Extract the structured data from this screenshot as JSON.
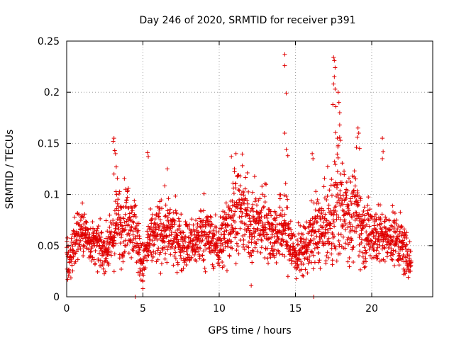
{
  "chart_data": {
    "type": "scatter",
    "title": "Day 246 of 2020, SRMTID for receiver p391",
    "xlabel": "GPS time / hours",
    "ylabel": "SRMTID / TECUs",
    "xlim": [
      0,
      24
    ],
    "ylim": [
      0,
      0.25
    ],
    "x_ticks": [
      0,
      5,
      10,
      15,
      20
    ],
    "x_tick_labels": [
      "0",
      "5",
      "10",
      "15",
      "20"
    ],
    "y_ticks": [
      0,
      0.05,
      0.1,
      0.15,
      0.2,
      0.25
    ],
    "y_tick_labels": [
      "0",
      "0.05",
      "0.1",
      "0.15",
      "0.2",
      "0.25"
    ],
    "grid": true,
    "marker": "plus",
    "series": [
      {
        "name": "SRMTID",
        "color": "#e00000",
        "trend": {
          "x": [
            0,
            0.15,
            0.3,
            0.6,
            1.0,
            1.5,
            2.0,
            2.5,
            3.0,
            3.3,
            3.6,
            4.0,
            4.3,
            4.6,
            4.8,
            5.0,
            5.3,
            5.8,
            6.3,
            7.0,
            7.5,
            8.0,
            8.5,
            9.0,
            9.5,
            10.0,
            10.5,
            11.0,
            11.5,
            12.0,
            12.5,
            13.0,
            13.5,
            14.0,
            14.3,
            14.6,
            15.0,
            15.4,
            15.8,
            16.3,
            16.8,
            17.2,
            17.5,
            17.7,
            18.0,
            18.3,
            18.6,
            19.0,
            19.5,
            20.0,
            20.5,
            21.0,
            21.5,
            22.0,
            22.3,
            22.6
          ],
          "y": [
            0.045,
            0.03,
            0.04,
            0.06,
            0.065,
            0.055,
            0.05,
            0.045,
            0.055,
            0.075,
            0.07,
            0.08,
            0.075,
            0.06,
            0.04,
            0.03,
            0.05,
            0.06,
            0.065,
            0.06,
            0.055,
            0.05,
            0.055,
            0.065,
            0.055,
            0.05,
            0.065,
            0.085,
            0.085,
            0.07,
            0.07,
            0.075,
            0.06,
            0.065,
            0.07,
            0.055,
            0.04,
            0.045,
            0.05,
            0.065,
            0.065,
            0.07,
            0.075,
            0.1,
            0.085,
            0.095,
            0.075,
            0.085,
            0.06,
            0.065,
            0.06,
            0.055,
            0.06,
            0.05,
            0.04,
            0.035
          ],
          "spread": [
            0.012,
            0.01,
            0.015,
            0.015,
            0.015,
            0.012,
            0.012,
            0.012,
            0.015,
            0.025,
            0.022,
            0.02,
            0.02,
            0.02,
            0.015,
            0.012,
            0.015,
            0.018,
            0.02,
            0.018,
            0.016,
            0.015,
            0.015,
            0.02,
            0.015,
            0.015,
            0.022,
            0.025,
            0.025,
            0.022,
            0.02,
            0.022,
            0.018,
            0.02,
            0.025,
            0.02,
            0.015,
            0.015,
            0.015,
            0.022,
            0.022,
            0.025,
            0.03,
            0.045,
            0.035,
            0.03,
            0.025,
            0.025,
            0.018,
            0.02,
            0.018,
            0.015,
            0.016,
            0.015,
            0.012,
            0.01
          ],
          "count": 2200
        },
        "notable_points": [
          {
            "x": 3.1,
            "y": 0.155
          },
          {
            "x": 3.05,
            "y": 0.152
          },
          {
            "x": 3.15,
            "y": 0.143
          },
          {
            "x": 3.2,
            "y": 0.14
          },
          {
            "x": 3.25,
            "y": 0.127
          },
          {
            "x": 3.1,
            "y": 0.12
          },
          {
            "x": 5.3,
            "y": 0.141
          },
          {
            "x": 5.35,
            "y": 0.137
          },
          {
            "x": 6.6,
            "y": 0.125
          },
          {
            "x": 4.5,
            "y": 0.0
          },
          {
            "x": 5.0,
            "y": 0.008
          },
          {
            "x": 10.8,
            "y": 0.137
          },
          {
            "x": 11.1,
            "y": 0.14
          },
          {
            "x": 11.0,
            "y": 0.125
          },
          {
            "x": 12.1,
            "y": 0.011
          },
          {
            "x": 14.3,
            "y": 0.237
          },
          {
            "x": 14.3,
            "y": 0.226
          },
          {
            "x": 14.4,
            "y": 0.199
          },
          {
            "x": 14.3,
            "y": 0.16
          },
          {
            "x": 14.4,
            "y": 0.144
          },
          {
            "x": 14.5,
            "y": 0.138
          },
          {
            "x": 16.1,
            "y": 0.14
          },
          {
            "x": 16.15,
            "y": 0.135
          },
          {
            "x": 16.2,
            "y": 0.0
          },
          {
            "x": 17.5,
            "y": 0.234
          },
          {
            "x": 17.55,
            "y": 0.231
          },
          {
            "x": 17.6,
            "y": 0.224
          },
          {
            "x": 17.55,
            "y": 0.215
          },
          {
            "x": 17.5,
            "y": 0.208
          },
          {
            "x": 17.6,
            "y": 0.203
          },
          {
            "x": 17.8,
            "y": 0.2
          },
          {
            "x": 17.85,
            "y": 0.19
          },
          {
            "x": 17.9,
            "y": 0.18
          },
          {
            "x": 17.45,
            "y": 0.188
          },
          {
            "x": 17.65,
            "y": 0.186
          },
          {
            "x": 17.9,
            "y": 0.168
          },
          {
            "x": 17.75,
            "y": 0.155
          },
          {
            "x": 17.8,
            "y": 0.148
          },
          {
            "x": 17.95,
            "y": 0.153
          },
          {
            "x": 19.1,
            "y": 0.165
          },
          {
            "x": 19.15,
            "y": 0.16
          },
          {
            "x": 19.05,
            "y": 0.156
          },
          {
            "x": 19.0,
            "y": 0.146
          },
          {
            "x": 19.2,
            "y": 0.145
          },
          {
            "x": 20.7,
            "y": 0.155
          },
          {
            "x": 20.75,
            "y": 0.142
          },
          {
            "x": 20.7,
            "y": 0.135
          },
          {
            "x": 22.1,
            "y": 0.022
          },
          {
            "x": 22.3,
            "y": 0.025
          }
        ]
      }
    ]
  }
}
